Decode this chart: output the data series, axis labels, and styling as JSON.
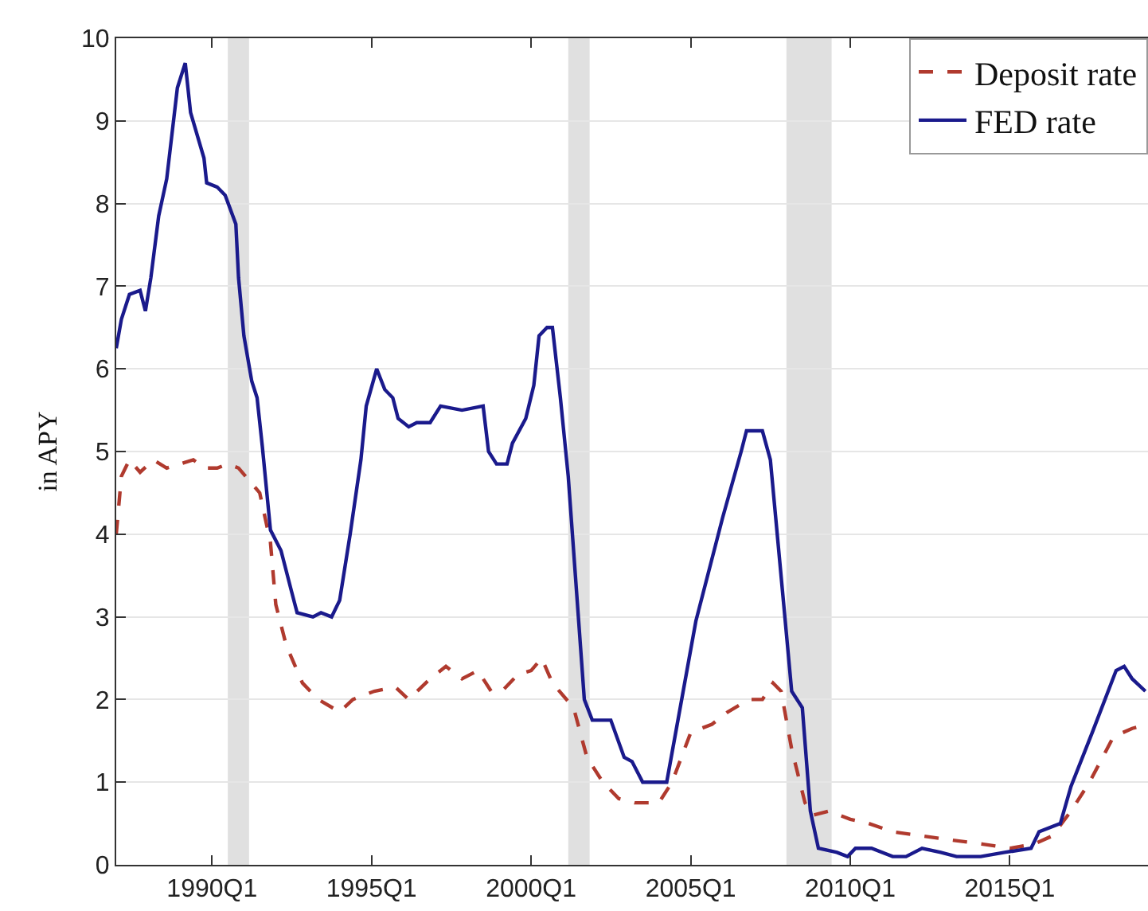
{
  "chart_data": {
    "type": "line",
    "ylabel": "in APY",
    "xlim": [
      "1987-01",
      "2019-05"
    ],
    "ylim": [
      0,
      10
    ],
    "xticks": [
      {
        "value": "1990-01",
        "label": "1990Q1"
      },
      {
        "value": "1995-01",
        "label": "1995Q1"
      },
      {
        "value": "2000-01",
        "label": "2000Q1"
      },
      {
        "value": "2005-01",
        "label": "2005Q1"
      },
      {
        "value": "2010-01",
        "label": "2010Q1"
      },
      {
        "value": "2015-01",
        "label": "2015Q1"
      }
    ],
    "yticks": [
      0,
      1,
      2,
      3,
      4,
      5,
      6,
      7,
      8,
      9,
      10
    ],
    "grid": "y",
    "legend": "top right",
    "bands": [
      {
        "axis": "x",
        "from": "1990-07",
        "to": "1991-03",
        "color": "#e0e0e0"
      },
      {
        "axis": "x",
        "from": "2001-03",
        "to": "2001-11",
        "color": "#e0e0e0"
      },
      {
        "axis": "x",
        "from": "2008-01",
        "to": "2009-06",
        "color": "#e0e0e0"
      }
    ],
    "series": [
      {
        "name": "Deposit rate",
        "color": "#b03a2e",
        "line_style": "dashed",
        "x": [
          "1987-01",
          "1987-03",
          "1987-06",
          "1987-10",
          "1988-03",
          "1988-08",
          "1989-01",
          "1989-06",
          "1989-10",
          "1990-03",
          "1990-07",
          "1990-11",
          "1991-07",
          "1991-11",
          "1992-01",
          "1992-05",
          "1992-11",
          "1993-05",
          "1994-01",
          "1994-06",
          "1995-02",
          "1995-10",
          "1996-03",
          "1996-11",
          "1997-05",
          "1997-11",
          "1998-05",
          "1998-10",
          "1999-02",
          "1999-08",
          "2000-01",
          "2000-05",
          "2000-09",
          "2001-05",
          "2001-10",
          "2002-04",
          "2002-10",
          "2003-04",
          "2004-01",
          "2004-06",
          "2005-01",
          "2005-09",
          "2006-03",
          "2006-11",
          "2007-04",
          "2007-08",
          "2007-11",
          "2008-03",
          "2008-08",
          "2008-11",
          "2009-05",
          "2010-01",
          "2010-08",
          "2011-05",
          "2012-04",
          "2013-03",
          "2014-03",
          "2015-01",
          "2015-10",
          "2016-05",
          "2016-12",
          "2017-07",
          "2018-04",
          "2018-11",
          "2019-05"
        ],
        "values": [
          4.0,
          4.7,
          4.9,
          4.75,
          4.9,
          4.8,
          4.85,
          4.9,
          4.8,
          4.8,
          4.85,
          4.8,
          4.5,
          3.9,
          3.15,
          2.65,
          2.2,
          2.0,
          1.85,
          2.0,
          2.1,
          2.15,
          2.0,
          2.25,
          2.4,
          2.25,
          2.35,
          2.1,
          2.1,
          2.3,
          2.35,
          2.5,
          2.2,
          1.9,
          1.3,
          1.0,
          0.8,
          0.75,
          0.75,
          1.0,
          1.6,
          1.7,
          1.85,
          2.0,
          2.0,
          2.2,
          2.1,
          1.4,
          0.75,
          0.6,
          0.65,
          0.55,
          0.5,
          0.4,
          0.35,
          0.3,
          0.25,
          0.2,
          0.25,
          0.35,
          0.65,
          1.0,
          1.55,
          1.65,
          1.7
        ]
      },
      {
        "name": "FED rate",
        "color": "#1a1a8c",
        "line_style": "solid",
        "x": [
          "1987-01",
          "1987-03",
          "1987-06",
          "1987-10",
          "1987-12",
          "1988-02",
          "1988-05",
          "1988-08",
          "1988-12",
          "1989-03",
          "1989-05",
          "1989-10",
          "1989-11",
          "1990-03",
          "1990-06",
          "1990-10",
          "1990-11",
          "1991-01",
          "1991-04",
          "1991-06",
          "1991-08",
          "1991-11",
          "1992-03",
          "1992-07",
          "1992-09",
          "1993-03",
          "1993-06",
          "1993-10",
          "1994-01",
          "1994-05",
          "1994-09",
          "1994-11",
          "1995-03",
          "1995-06",
          "1995-09",
          "1995-11",
          "1996-03",
          "1996-06",
          "1996-11",
          "1997-03",
          "1997-11",
          "1998-07",
          "1998-09",
          "1998-12",
          "1999-04",
          "1999-06",
          "1999-11",
          "2000-02",
          "2000-04",
          "2000-07",
          "2000-09",
          "2000-12",
          "2001-03",
          "2001-09",
          "2001-12",
          "2002-07",
          "2002-12",
          "2003-03",
          "2003-07",
          "2004-04",
          "2005-03",
          "2006-01",
          "2006-08",
          "2006-10",
          "2007-04",
          "2007-07",
          "2007-12",
          "2008-03",
          "2008-07",
          "2008-10",
          "2009-01",
          "2009-08",
          "2009-12",
          "2010-03",
          "2010-09",
          "2011-05",
          "2011-10",
          "2012-04",
          "2012-11",
          "2013-05",
          "2014-02",
          "2014-11",
          "2015-09",
          "2015-12",
          "2016-08",
          "2016-12",
          "2017-08",
          "2018-05",
          "2018-08",
          "2018-11",
          "2019-04"
        ],
        "values": [
          6.25,
          6.6,
          6.9,
          6.95,
          6.7,
          7.1,
          7.85,
          8.3,
          9.4,
          9.7,
          9.1,
          8.55,
          8.25,
          8.2,
          8.1,
          7.75,
          7.1,
          6.4,
          5.85,
          5.65,
          5.05,
          4.05,
          3.8,
          3.3,
          3.05,
          3.0,
          3.05,
          3.0,
          3.2,
          4.0,
          4.9,
          5.55,
          6.0,
          5.75,
          5.65,
          5.4,
          5.3,
          5.35,
          5.35,
          5.55,
          5.5,
          5.55,
          5.0,
          4.85,
          4.85,
          5.1,
          5.4,
          5.8,
          6.4,
          6.5,
          6.5,
          5.65,
          4.7,
          2.0,
          1.75,
          1.75,
          1.3,
          1.25,
          1.0,
          1.0,
          2.95,
          4.2,
          5.0,
          5.25,
          5.25,
          4.9,
          3.15,
          2.1,
          1.9,
          0.65,
          0.2,
          0.15,
          0.1,
          0.2,
          0.2,
          0.1,
          0.1,
          0.2,
          0.15,
          0.1,
          0.1,
          0.15,
          0.2,
          0.4,
          0.5,
          0.95,
          1.6,
          2.35,
          2.4,
          2.25,
          2.1
        ]
      }
    ]
  }
}
